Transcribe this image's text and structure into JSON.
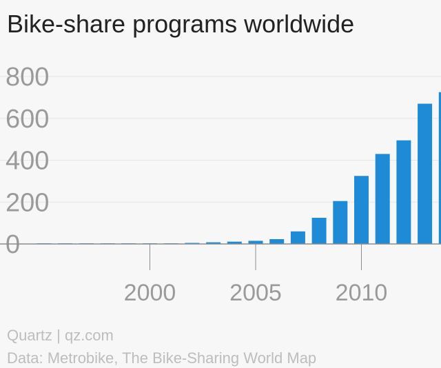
{
  "title": "Bike-share programs worldwide",
  "credit": "Quartz | qz.com",
  "source": "Data: Metrobike, The Bike-Sharing World Map",
  "colors": {
    "bar": "#1f8ad6",
    "grid": "#e6e6e6",
    "axis": "#8c8c8c",
    "tick": "#9a9a9a"
  },
  "chart_data": {
    "type": "bar",
    "x": [
      1995,
      1996,
      1997,
      1998,
      1999,
      2000,
      2001,
      2002,
      2003,
      2004,
      2005,
      2006,
      2007,
      2008,
      2009,
      2010,
      2011,
      2012,
      2013,
      2014
    ],
    "values": [
      1,
      1,
      1,
      1,
      1,
      2,
      3,
      5,
      8,
      11,
      15,
      23,
      60,
      125,
      205,
      325,
      430,
      495,
      670,
      725
    ],
    "xticks": [
      "2000",
      "2005",
      "2010"
    ],
    "yticks": [
      "0",
      "200",
      "400",
      "600",
      "800"
    ],
    "ylim": [
      0,
      800
    ],
    "xlabel": "",
    "ylabel": "",
    "grid": true
  }
}
